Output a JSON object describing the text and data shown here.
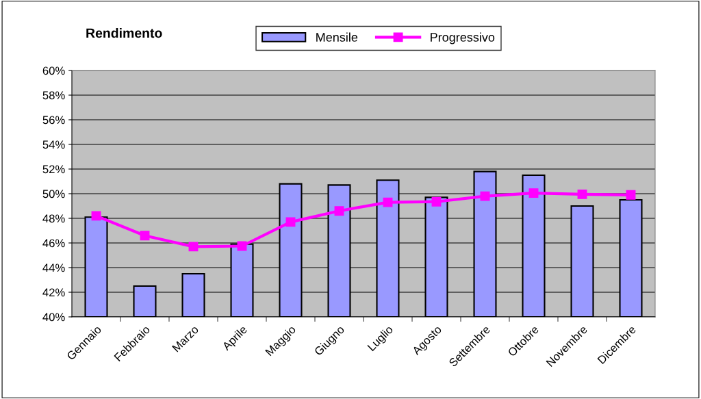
{
  "chart_data": {
    "type": "bar",
    "title": "Rendimento",
    "categories": [
      "Gennaio",
      "Febbraio",
      "Marzo",
      "Aprile",
      "Maggio",
      "Giugno",
      "Luglio",
      "Agosto",
      "Settembre",
      "Ottobre",
      "Novembre",
      "Dicembre"
    ],
    "series": [
      {
        "name": "Mensile",
        "color": "#9999ff",
        "values": [
          48.1,
          42.5,
          43.5,
          45.9,
          50.8,
          50.7,
          51.1,
          49.7,
          51.8,
          51.5,
          49.0,
          49.5
        ]
      },
      {
        "name": "Progressivo",
        "type": "line",
        "color": "#ff00ff",
        "marker": "square",
        "values": [
          48.2,
          46.6,
          45.7,
          45.75,
          47.7,
          48.6,
          49.3,
          49.35,
          49.8,
          50.05,
          49.95,
          49.9
        ]
      }
    ],
    "ylim": [
      40,
      60
    ],
    "yticks": [
      {
        "value": 40,
        "label": "40%"
      },
      {
        "value": 42,
        "label": "42%"
      },
      {
        "value": 44,
        "label": "44%"
      },
      {
        "value": 46,
        "label": "46%"
      },
      {
        "value": 48,
        "label": "48%"
      },
      {
        "value": 50,
        "label": "50%"
      },
      {
        "value": 52,
        "label": "52%"
      },
      {
        "value": 54,
        "label": "54%"
      },
      {
        "value": 56,
        "label": "56%"
      },
      {
        "value": 58,
        "label": "58%"
      },
      {
        "value": 60,
        "label": "60%"
      }
    ],
    "grid": "y",
    "legend": "top"
  }
}
